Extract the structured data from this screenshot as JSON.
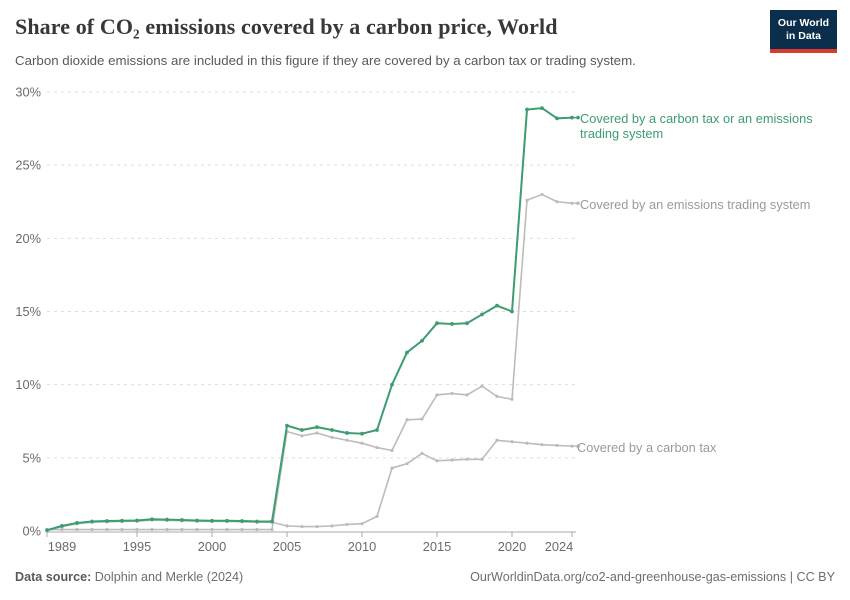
{
  "header": {
    "title": "Share of CO₂ emissions covered by a carbon price, World",
    "subtitle": "Carbon dioxide emissions are included in this figure if they are covered by a carbon tax or trading system."
  },
  "logo": {
    "line1": "Our World",
    "line2": "in Data",
    "bg_color": "#0b2e4d",
    "accent_color": "#d93a2d"
  },
  "chart_data": {
    "type": "line",
    "title": "Share of CO₂ emissions covered by a carbon price, World",
    "xlabel": "",
    "ylabel": "",
    "ylim": [
      0,
      30
    ],
    "grid": "horizontal-dashed",
    "legend_position": "right-end-labels",
    "colors": {
      "green": "#3d9c70",
      "gray_line": "#bcbcbc",
      "gray_text": "#9a9a9a",
      "grid": "#dedede",
      "axis": "#a8a8a8",
      "tick_text": "#6b6b6b"
    },
    "x": [
      1989,
      1990,
      1991,
      1992,
      1993,
      1994,
      1995,
      1996,
      1997,
      1998,
      1999,
      2000,
      2001,
      2002,
      2003,
      2004,
      2005,
      2006,
      2007,
      2008,
      2009,
      2010,
      2011,
      2012,
      2013,
      2014,
      2015,
      2016,
      2017,
      2018,
      2019,
      2020,
      2021,
      2022,
      2023,
      2024
    ],
    "yticks": [
      {
        "value": 0,
        "label": "0%"
      },
      {
        "value": 5,
        "label": "5%"
      },
      {
        "value": 10,
        "label": "10%"
      },
      {
        "value": 15,
        "label": "15%"
      },
      {
        "value": 20,
        "label": "20%"
      },
      {
        "value": 25,
        "label": "25%"
      },
      {
        "value": 30,
        "label": "30%"
      }
    ],
    "xticks": [
      {
        "value": 1989,
        "label": "1989"
      },
      {
        "value": 1995,
        "label": "1995"
      },
      {
        "value": 2000,
        "label": "2000"
      },
      {
        "value": 2005,
        "label": "2005"
      },
      {
        "value": 2010,
        "label": "2010"
      },
      {
        "value": 2015,
        "label": "2015"
      },
      {
        "value": 2020,
        "label": "2020"
      },
      {
        "value": 2024,
        "label": "2024"
      }
    ],
    "series": [
      {
        "name": "Covered by a carbon tax or an emissions trading system",
        "color": "#3d9c70",
        "values": [
          0.05,
          0.35,
          0.55,
          0.65,
          0.68,
          0.7,
          0.72,
          0.8,
          0.78,
          0.75,
          0.72,
          0.7,
          0.7,
          0.68,
          0.65,
          0.65,
          7.2,
          6.9,
          7.1,
          6.9,
          6.7,
          6.65,
          6.9,
          10.0,
          12.2,
          13.0,
          14.2,
          14.15,
          14.2,
          14.8,
          15.4,
          15.0,
          28.8,
          28.9,
          28.2,
          28.25
        ]
      },
      {
        "name": "Covered by an emissions trading system",
        "color": "#bcbcbc",
        "values": [
          0.1,
          0.1,
          0.1,
          0.1,
          0.1,
          0.1,
          0.1,
          0.1,
          0.1,
          0.1,
          0.1,
          0.1,
          0.1,
          0.1,
          0.1,
          0.1,
          6.8,
          6.5,
          6.7,
          6.4,
          6.2,
          6.0,
          5.7,
          5.5,
          7.6,
          7.65,
          9.3,
          9.4,
          9.3,
          9.9,
          9.2,
          9.0,
          22.6,
          23.0,
          22.5,
          22.4
        ]
      },
      {
        "name": "Covered by a carbon tax",
        "color": "#bcbcbc",
        "values": [
          0.05,
          0.3,
          0.5,
          0.6,
          0.63,
          0.65,
          0.67,
          0.75,
          0.73,
          0.7,
          0.67,
          0.65,
          0.65,
          0.63,
          0.6,
          0.6,
          0.35,
          0.3,
          0.3,
          0.35,
          0.45,
          0.5,
          1.0,
          4.3,
          4.6,
          5.3,
          4.8,
          4.85,
          4.9,
          4.9,
          6.2,
          6.1,
          6.0,
          5.9,
          5.85,
          5.8
        ]
      }
    ]
  },
  "footer": {
    "source_prefix": "Data source:",
    "source_text": " Dolphin and Merkle (2024)",
    "attribution": "OurWorldinData.org/co2-and-greenhouse-gas-emissions | CC BY"
  }
}
